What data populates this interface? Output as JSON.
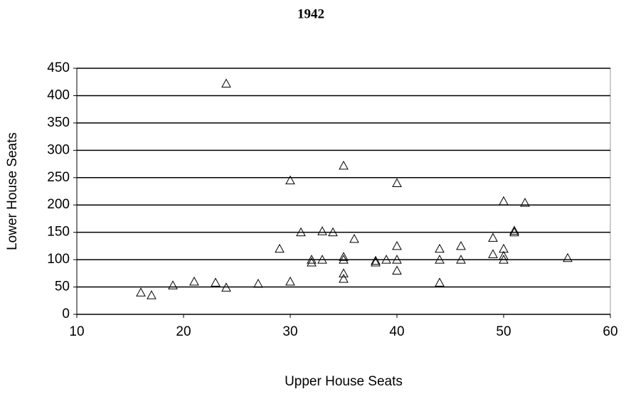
{
  "chart_data": {
    "type": "scatter",
    "title": "1942",
    "xlabel": "Upper House Seats",
    "ylabel": "Lower House Seats",
    "x": [
      16,
      17,
      19,
      21,
      23,
      24,
      24,
      27,
      29,
      30,
      30,
      31,
      32,
      32,
      33,
      33,
      34,
      35,
      35,
      35,
      35,
      35,
      36,
      38,
      38,
      39,
      40,
      40,
      40,
      40,
      44,
      44,
      44,
      46,
      46,
      49,
      49,
      50,
      50,
      50,
      50,
      51,
      51,
      52,
      56
    ],
    "values": [
      40,
      35,
      53,
      60,
      58,
      422,
      49,
      56,
      120,
      245,
      60,
      150,
      100,
      95,
      152,
      100,
      150,
      272,
      105,
      100,
      75,
      65,
      138,
      98,
      95,
      100,
      240,
      125,
      100,
      80,
      120,
      100,
      58,
      125,
      100,
      140,
      110,
      207,
      120,
      107,
      100,
      153,
      150,
      204,
      103
    ],
    "color": "#000000",
    "xlim": [
      10,
      60
    ],
    "xticks": [
      10,
      20,
      30,
      40,
      50,
      60
    ],
    "ylim": [
      0,
      450
    ],
    "yticks": [
      0,
      50,
      100,
      150,
      200,
      250,
      300,
      350,
      400,
      450
    ],
    "grid": true
  }
}
